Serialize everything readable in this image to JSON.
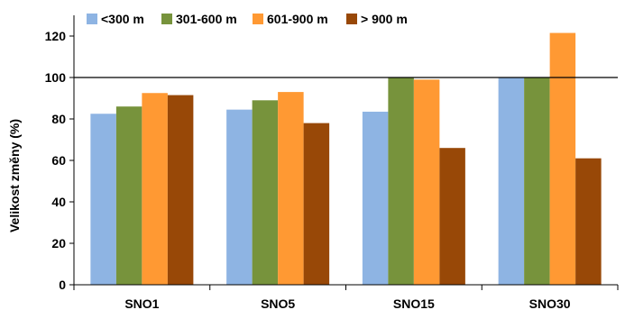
{
  "chart_data": {
    "type": "bar",
    "title": "",
    "xlabel": "",
    "ylabel": "Velikost změny (%)",
    "ylim": [
      0,
      130
    ],
    "yticks": [
      0,
      20,
      40,
      60,
      80,
      100,
      120
    ],
    "grid": false,
    "reference_line": 100,
    "legend_position": "top",
    "categories": [
      "SNO1",
      "SNO5",
      "SNO15",
      "SNO30"
    ],
    "series": [
      {
        "name": "<300 m",
        "color": "#8EB4E3",
        "values": [
          82.5,
          84.5,
          83.5,
          100
        ]
      },
      {
        "name": "301-600 m",
        "color": "#77933C",
        "values": [
          86,
          89,
          100,
          100
        ]
      },
      {
        "name": "601-900 m",
        "color": "#FF9933",
        "values": [
          92.5,
          93,
          99,
          121.5
        ]
      },
      {
        "name": "> 900 m",
        "color": "#984807",
        "values": [
          91.5,
          78,
          66,
          61
        ]
      }
    ]
  }
}
